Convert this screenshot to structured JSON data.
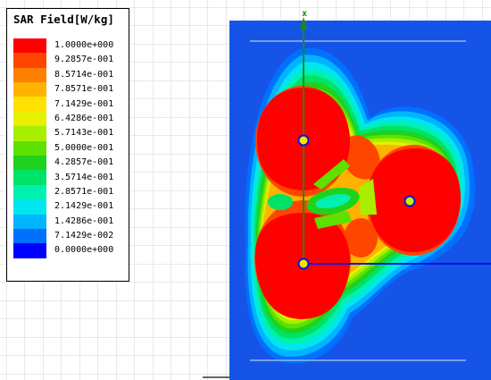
{
  "legend": {
    "title": "SAR Field[W/kg]",
    "entries": [
      {
        "label": "1.0000e+000",
        "color": "#ff0000"
      },
      {
        "label": "9.2857e-001",
        "color": "#ff4600"
      },
      {
        "label": "8.5714e-001",
        "color": "#ff8000"
      },
      {
        "label": "7.8571e-001",
        "color": "#ffb300"
      },
      {
        "label": "7.1429e-001",
        "color": "#ffe000"
      },
      {
        "label": "6.4286e-001",
        "color": "#e6f000"
      },
      {
        "label": "5.7143e-001",
        "color": "#a8ee00"
      },
      {
        "label": "5.0000e-001",
        "color": "#5ee000"
      },
      {
        "label": "4.2857e-001",
        "color": "#1ed21e"
      },
      {
        "label": "3.5714e-001",
        "color": "#00e266"
      },
      {
        "label": "2.8571e-001",
        "color": "#00f0b0"
      },
      {
        "label": "2.1429e-001",
        "color": "#00e6ee"
      },
      {
        "label": "1.4286e-001",
        "color": "#00b4ff"
      },
      {
        "label": "7.1429e-002",
        "color": "#0070ff"
      },
      {
        "label": "0.0000e+000",
        "color": "#0000ff"
      }
    ]
  },
  "plot": {
    "axis_label": "x",
    "background_color": "#1654e8",
    "axis_colors": {
      "vertical": "#1a8a1a",
      "horizontal": "#0018e0"
    }
  }
}
